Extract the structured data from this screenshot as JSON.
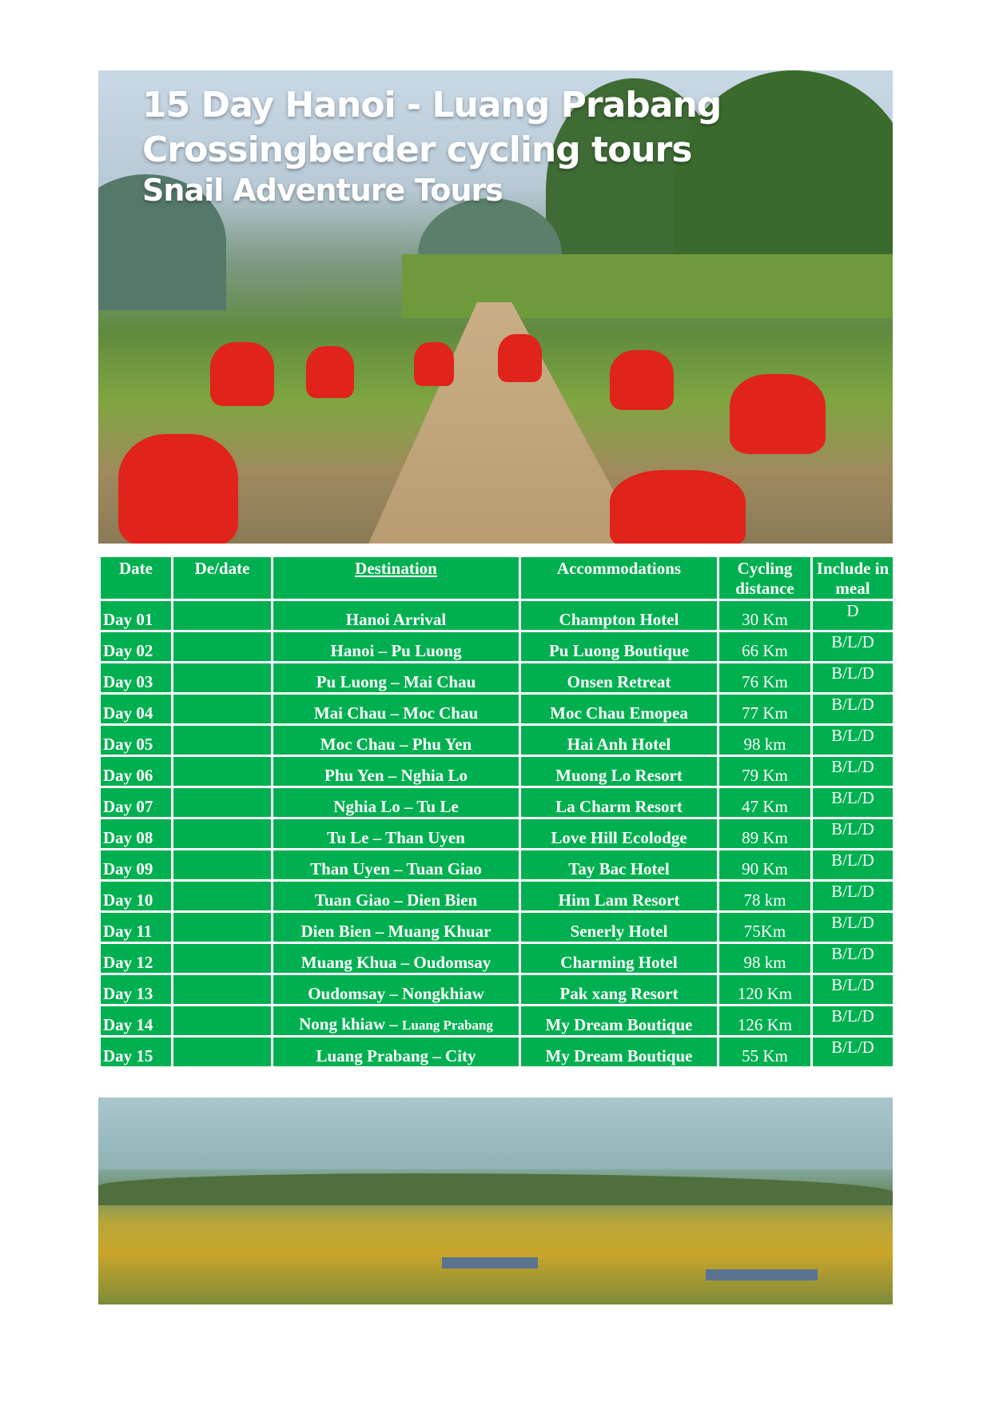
{
  "hero": {
    "title_line1": "15 Day Hanoi - Luang Prabang",
    "title_line2": "Crossingberder cycling tours",
    "title_line3": "Snail Adventure Tours"
  },
  "table": {
    "headers": [
      "Date",
      "De/date",
      "Destination",
      "Accommodations",
      "Cycling distance",
      "Include in meal"
    ],
    "rows": [
      {
        "date": "Day 01",
        "dedate": "",
        "destination": "Hanoi  Arrival",
        "accommodation": "Champton Hotel",
        "distance": "30 Km",
        "meal": "D"
      },
      {
        "date": "Day 02",
        "dedate": "",
        "destination": "Hanoi – Pu Luong",
        "accommodation": "Pu Luong Boutique",
        "distance": "66 Km",
        "meal": "B/L/D"
      },
      {
        "date": "Day 03",
        "dedate": "",
        "destination": "Pu Luong – Mai Chau",
        "accommodation": "Onsen Retreat",
        "distance": "76 Km",
        "meal": "B/L/D"
      },
      {
        "date": "Day 04",
        "dedate": "",
        "destination": "Mai Chau – Moc Chau",
        "accommodation": "Moc Chau Emopea",
        "distance": "77 Km",
        "meal": "B/L/D"
      },
      {
        "date": "Day 05",
        "dedate": "",
        "destination": "Moc  Chau – Phu Yen",
        "accommodation": "Hai Anh Hotel",
        "distance": "98 km",
        "meal": "B/L/D"
      },
      {
        "date": "Day 06",
        "dedate": "",
        "destination": "Phu Yen – Nghia Lo",
        "accommodation": "Muong Lo Resort",
        "distance": "79 Km",
        "meal": "B/L/D"
      },
      {
        "date": "Day 07",
        "dedate": "",
        "destination": "Nghia Lo – Tu Le",
        "accommodation": "La Charm Resort",
        "distance": "47 Km",
        "meal": "B/L/D"
      },
      {
        "date": "Day 08",
        "dedate": "",
        "destination": "Tu Le – Than Uyen",
        "accommodation": "Love Hill Ecolodge",
        "distance": "89 Km",
        "meal": "B/L/D"
      },
      {
        "date": "Day 09",
        "dedate": "",
        "destination": "Than Uyen – Tuan Giao",
        "accommodation": "Tay Bac Hotel",
        "distance": "90 Km",
        "meal": "B/L/D"
      },
      {
        "date": "Day 10",
        "dedate": "",
        "destination": "Tuan Giao – Dien Bien",
        "accommodation": "Him Lam Resort",
        "distance": "78 km",
        "meal": "B/L/D"
      },
      {
        "date": "Day 11",
        "dedate": "",
        "destination": "Dien Bien – Muang Khuar",
        "accommodation": "Senerly Hotel",
        "distance": "75Km",
        "meal": "B/L/D"
      },
      {
        "date": "Day 12",
        "dedate": "",
        "destination": "Muang Khua – Oudomsay",
        "accommodation": "Charming Hotel",
        "distance": "98 km",
        "meal": "B/L/D"
      },
      {
        "date": "Day 13",
        "dedate": "",
        "destination": "Oudomsay – Nongkhiaw",
        "accommodation": "Pak xang Resort",
        "distance": "120 Km",
        "meal": "B/L/D"
      },
      {
        "date": "Day 14",
        "dedate": "",
        "destination": "Nong khiaw – ",
        "destination_small": "Luang Prabang",
        "accommodation": "My Dream Boutique",
        "distance": "126 Km",
        "meal": "B/L/D"
      },
      {
        "date": "Day 15",
        "dedate": "",
        "destination": "Luang Prabang – City",
        "accommodation": "My Dream Boutique",
        "distance": "55 Km",
        "meal": "B/L/D"
      }
    ]
  },
  "colors": {
    "table_green": "#00b050",
    "border": "#ffffff"
  }
}
